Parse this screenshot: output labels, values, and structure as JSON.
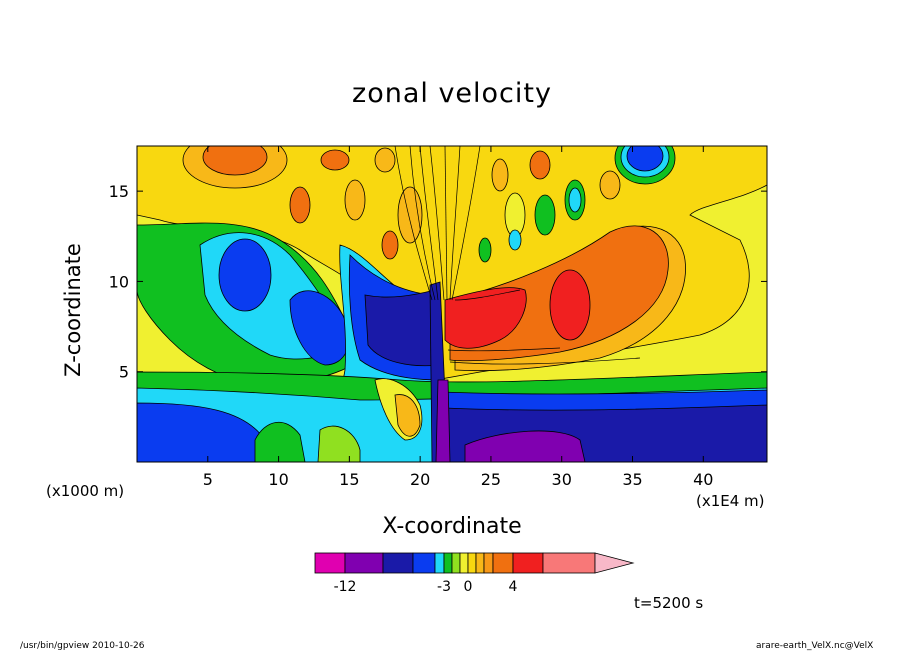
{
  "chart_data": {
    "type": "heatmap",
    "title": "zonal velocity",
    "xlabel": "X-coordinate",
    "ylabel": "Z-coordinate",
    "x_unit_left": "(x1000 m)",
    "x_unit_right": "(x1E4 m)",
    "xlim": [
      0,
      44.5
    ],
    "ylim": [
      0,
      17.5
    ],
    "x_ticks": [
      5,
      10,
      15,
      20,
      25,
      30,
      35,
      40
    ],
    "y_ticks": [
      5,
      10,
      15
    ],
    "grid": false,
    "colorbar": {
      "levels": [
        -15,
        -12,
        -9,
        -6,
        -4,
        -3,
        -2,
        -1,
        0,
        1,
        2,
        3,
        4,
        6,
        8
      ],
      "colors": [
        "#e000b0",
        "#8000b0",
        "#1a1aa8",
        "#0a3cf0",
        "#20d8f8",
        "#10c020",
        "#90e020",
        "#f0f030",
        "#f8d810",
        "#f8b818",
        "#f89818",
        "#f07010",
        "#f02020",
        "#f87878",
        "#f8b8c8"
      ],
      "tick_labels": [
        "-12",
        "-3",
        "0",
        "4"
      ],
      "tick_values": [
        -12,
        -3,
        0,
        4
      ]
    },
    "regions_note": "",
    "time_label": "t=5200 s"
  },
  "footer": {
    "left": "/usr/bin/gpview   2010-10-26",
    "right": "arare-earth_VelX.nc@VelX"
  }
}
